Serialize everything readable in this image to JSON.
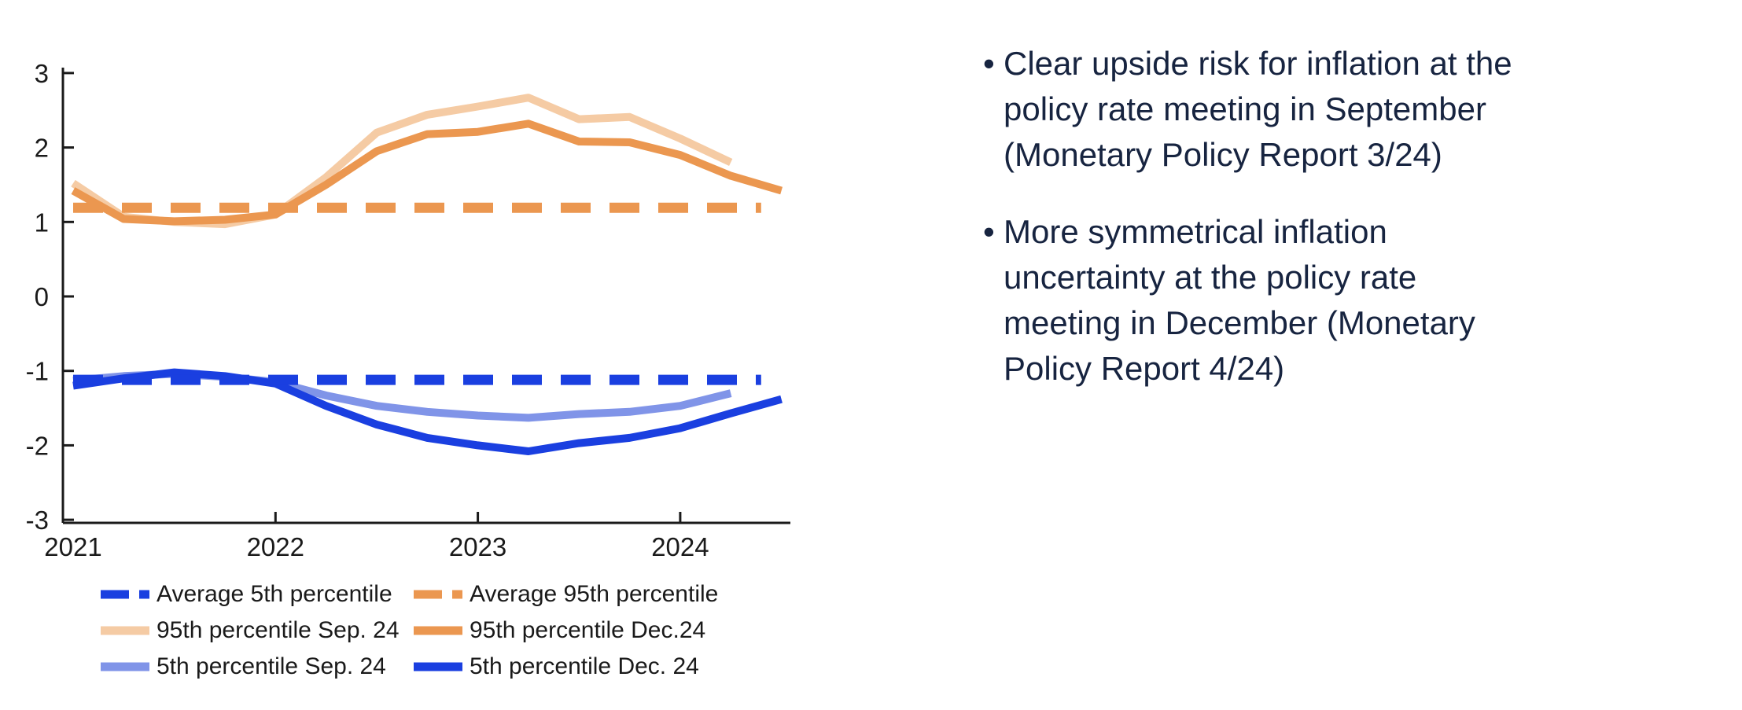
{
  "chart_data": {
    "type": "line",
    "title": "",
    "xlabel": "",
    "ylabel": "",
    "ylim": [
      -3,
      3
    ],
    "xlim": [
      2021,
      2024.6
    ],
    "grid": false,
    "legend_position": "below",
    "axis_color": "#1a1a1a",
    "y_ticks": [
      {
        "value": 3,
        "label": "3"
      },
      {
        "value": 2,
        "label": "2"
      },
      {
        "value": 1,
        "label": "1"
      },
      {
        "value": 0,
        "label": "0"
      },
      {
        "value": -1,
        "label": "-1"
      },
      {
        "value": -2,
        "label": "-2"
      },
      {
        "value": -3,
        "label": "-3"
      }
    ],
    "x_ticks": [
      {
        "year": 2021,
        "label": "2021",
        "tick": false
      },
      {
        "year": 2022,
        "label": "2022",
        "tick": true
      },
      {
        "year": 2023,
        "label": "2023",
        "tick": true
      },
      {
        "year": 2024,
        "label": "2024",
        "tick": true
      }
    ],
    "series": [
      {
        "name": "Average 5th percentile",
        "color": "#1A3FE0",
        "dash": true,
        "x": [
          2021,
          2024.4
        ],
        "values": [
          -1.12,
          -1.12
        ]
      },
      {
        "name": "Average 95th percentile",
        "color": "#EB9750",
        "dash": true,
        "x": [
          2021,
          2024.4
        ],
        "values": [
          1.19,
          1.19
        ]
      },
      {
        "name": "95th percentile Sep. 24",
        "color": "#F5CBA4",
        "dash": false,
        "x": [
          2021,
          2021.25,
          2021.5,
          2021.75,
          2022,
          2022.25,
          2022.5,
          2022.75,
          2023,
          2023.25,
          2023.5,
          2023.75,
          2024,
          2024.25
        ],
        "values": [
          1.52,
          1.07,
          1.0,
          0.97,
          1.1,
          1.6,
          2.2,
          2.44,
          2.55,
          2.67,
          2.38,
          2.41,
          2.12,
          1.8
        ]
      },
      {
        "name": "95th percentile Dec.24",
        "color": "#EB9750",
        "dash": false,
        "x": [
          2021,
          2021.25,
          2021.5,
          2021.75,
          2022,
          2022.25,
          2022.5,
          2022.75,
          2023,
          2023.25,
          2023.5,
          2023.75,
          2024,
          2024.25,
          2024.5
        ],
        "values": [
          1.42,
          1.04,
          1.01,
          1.03,
          1.1,
          1.5,
          1.95,
          2.18,
          2.21,
          2.32,
          2.08,
          2.07,
          1.9,
          1.62,
          1.42
        ]
      },
      {
        "name": "5th percentile Sep. 24",
        "color": "#8094E8",
        "dash": false,
        "x": [
          2021,
          2021.25,
          2021.5,
          2021.75,
          2022,
          2022.25,
          2022.5,
          2022.75,
          2023,
          2023.25,
          2023.5,
          2023.75,
          2024,
          2024.25
        ],
        "values": [
          -1.13,
          -1.07,
          -1.04,
          -1.08,
          -1.15,
          -1.33,
          -1.47,
          -1.55,
          -1.6,
          -1.63,
          -1.58,
          -1.55,
          -1.47,
          -1.3
        ]
      },
      {
        "name": "5th percentile Dec. 24",
        "color": "#1A3FE0",
        "dash": false,
        "x": [
          2021,
          2021.25,
          2021.5,
          2021.75,
          2022,
          2022.25,
          2022.5,
          2022.75,
          2023,
          2023.25,
          2023.5,
          2023.75,
          2024,
          2024.25,
          2024.5
        ],
        "values": [
          -1.2,
          -1.1,
          -1.02,
          -1.07,
          -1.17,
          -1.47,
          -1.72,
          -1.9,
          -2.0,
          -2.08,
          -1.97,
          -1.9,
          -1.77,
          -1.57,
          -1.38
        ]
      }
    ]
  },
  "notes": {
    "bullet_char": "•",
    "bullets": [
      {
        "lines": [
          "Clear upside risk for inflation at the",
          "policy rate meeting in September",
          "(Monetary Policy Report 3/24)"
        ]
      },
      {
        "lines": [
          "More symmetrical inflation",
          "uncertainty at the policy rate",
          "meeting in December (Monetary",
          "Policy Report 4/24)"
        ]
      }
    ],
    "text_color": "#172440"
  }
}
